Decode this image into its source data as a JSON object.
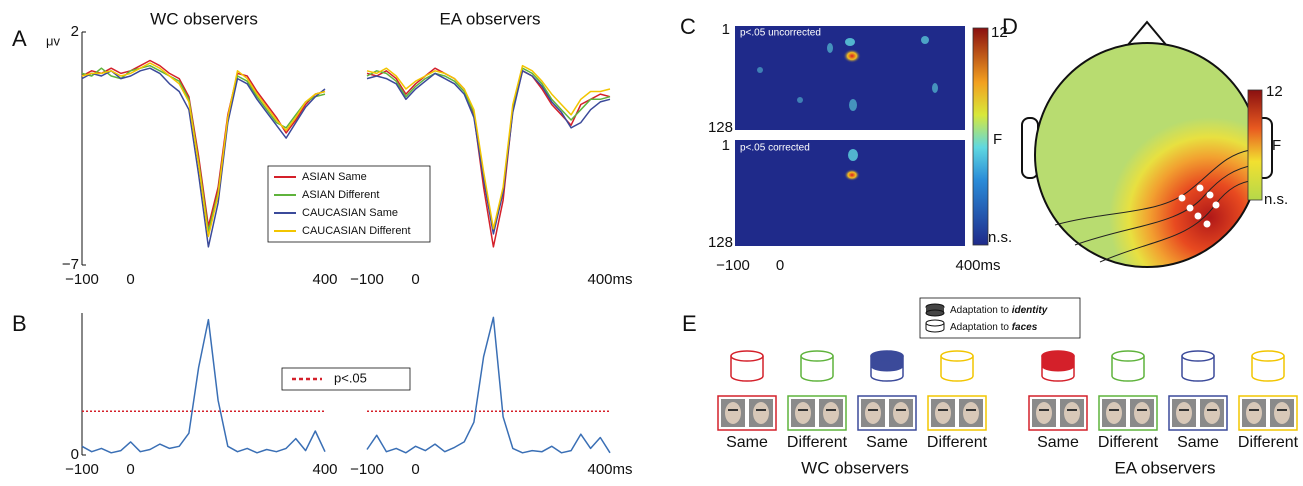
{
  "chart_data": [
    {
      "type": "line",
      "panel_label": "A",
      "title": "WC observers",
      "y_label": "μv",
      "x": [
        -100,
        -80,
        -60,
        -40,
        -20,
        0,
        20,
        40,
        60,
        80,
        100,
        120,
        140,
        160,
        180,
        200,
        220,
        240,
        260,
        280,
        300,
        320,
        340,
        360,
        380,
        400
      ],
      "series": [
        {
          "name": "ASIAN Same",
          "color": "#d4202a",
          "values": [
            0.3,
            0.5,
            0.4,
            0.6,
            0.4,
            0.5,
            0.7,
            0.9,
            0.7,
            0.4,
            0.2,
            -0.5,
            -2.8,
            -5.5,
            -4.0,
            -1.2,
            0.4,
            0.3,
            -0.3,
            -0.8,
            -1.3,
            -1.9,
            -1.4,
            -0.8,
            -0.4,
            -0.3
          ]
        },
        {
          "name": "ASIAN Different",
          "color": "#5fb33c",
          "values": [
            0.4,
            0.3,
            0.6,
            0.3,
            0.2,
            0.5,
            0.6,
            0.7,
            0.5,
            0.3,
            0.1,
            -0.6,
            -3.0,
            -5.7,
            -4.2,
            -1.4,
            0.3,
            0.1,
            -0.5,
            -1.0,
            -1.5,
            -1.7,
            -1.2,
            -0.7,
            -0.5,
            -0.4
          ]
        },
        {
          "name": "CAUCASIAN Same",
          "color": "#3b4a9a",
          "values": [
            0.2,
            0.4,
            0.3,
            0.5,
            0.2,
            0.3,
            0.5,
            0.6,
            0.4,
            0.0,
            -0.3,
            -1.0,
            -3.5,
            -6.3,
            -4.6,
            -1.5,
            0.2,
            0.0,
            -0.6,
            -1.1,
            -1.6,
            -2.1,
            -1.5,
            -0.9,
            -0.5,
            -0.2
          ]
        },
        {
          "name": "CAUCASIAN Different",
          "color": "#f2c500",
          "values": [
            0.3,
            0.4,
            0.4,
            0.5,
            0.3,
            0.4,
            0.6,
            0.8,
            0.6,
            0.3,
            0.0,
            -0.7,
            -3.1,
            -5.9,
            -4.3,
            -1.3,
            0.5,
            0.2,
            -0.4,
            -0.9,
            -1.4,
            -1.8,
            -1.3,
            -0.7,
            -0.4,
            -0.3
          ]
        }
      ],
      "xlim": [
        -100,
        400
      ],
      "ylim": [
        -7,
        2
      ],
      "xticks": [
        {
          "value": -100,
          "label": "−100"
        },
        0,
        400
      ],
      "yticks": [
        {
          "value": -7,
          "label": "−7"
        },
        2
      ],
      "legend": true
    },
    {
      "type": "line",
      "title": "EA observers",
      "x": [
        -100,
        -80,
        -60,
        -40,
        -20,
        0,
        20,
        40,
        60,
        80,
        100,
        120,
        140,
        160,
        180,
        200,
        220,
        240,
        260,
        280,
        300,
        320,
        340,
        360,
        380,
        400
      ],
      "series": [
        {
          "color": "#d4202a",
          "values": [
            0.4,
            0.3,
            0.5,
            0.2,
            -0.4,
            0.0,
            0.3,
            0.6,
            0.4,
            0.2,
            -0.2,
            -1.2,
            -4.0,
            -6.3,
            -4.5,
            -1.0,
            0.5,
            0.3,
            -0.2,
            -0.8,
            -1.2,
            -1.6,
            -0.8,
            -0.6,
            -0.4,
            -0.5
          ]
        },
        {
          "color": "#5fb33c",
          "values": [
            0.3,
            0.5,
            0.4,
            0.1,
            -0.5,
            -0.1,
            0.2,
            0.4,
            0.3,
            0.1,
            -0.3,
            -1.1,
            -3.6,
            -5.7,
            -4.1,
            -0.9,
            0.6,
            0.4,
            0.0,
            -0.6,
            -1.0,
            -1.4,
            -1.0,
            -0.6,
            -0.6,
            -0.5
          ]
        },
        {
          "color": "#3b4a9a",
          "values": [
            0.2,
            0.3,
            0.2,
            0.0,
            -0.6,
            -0.2,
            0.1,
            0.4,
            0.2,
            0.0,
            -0.4,
            -1.3,
            -3.7,
            -5.8,
            -4.2,
            -1.1,
            0.5,
            0.3,
            -0.1,
            -0.7,
            -1.1,
            -1.7,
            -1.5,
            -1.0,
            -0.7,
            -0.6
          ]
        },
        {
          "color": "#f2c500",
          "values": [
            0.5,
            0.4,
            0.6,
            0.3,
            -0.2,
            0.1,
            0.3,
            0.5,
            0.4,
            0.2,
            -0.2,
            -1.0,
            -3.4,
            -5.6,
            -4.0,
            -0.8,
            0.7,
            0.5,
            0.1,
            -0.4,
            -0.8,
            -1.2,
            -0.6,
            -0.3,
            -0.3,
            -0.2
          ]
        }
      ],
      "xlim": [
        -100,
        400
      ],
      "ylim": [
        -7,
        2
      ],
      "xticks": [
        {
          "value": -100,
          "label": "−100"
        },
        0,
        {
          "value": 400,
          "label": "400ms"
        }
      ]
    },
    {
      "type": "line",
      "panel_label": "B",
      "x": [
        -100,
        -80,
        -60,
        -40,
        -20,
        0,
        20,
        40,
        60,
        80,
        100,
        120,
        140,
        160,
        180,
        200,
        220,
        240,
        260,
        280,
        300,
        320,
        340,
        360,
        380,
        400
      ],
      "series": [
        {
          "color": "#3a6fb5",
          "values": [
            0.8,
            0.3,
            0.6,
            0.2,
            0.4,
            1.2,
            0.3,
            0.5,
            1.0,
            0.6,
            0.8,
            2.0,
            8.0,
            12.4,
            5.0,
            0.8,
            0.3,
            0.6,
            0.2,
            0.5,
            0.3,
            0.6,
            1.5,
            0.4,
            2.2,
            0.3
          ]
        }
      ],
      "threshold": {
        "value": 4,
        "label": "p<.05",
        "color": "#d4202a"
      },
      "xlim": [
        -100,
        400
      ],
      "ylim": [
        0,
        13
      ],
      "xticks": [
        {
          "value": -100,
          "label": "−100"
        },
        0,
        400
      ],
      "yticks": [
        0
      ]
    },
    {
      "type": "line",
      "x": [
        -100,
        -80,
        -60,
        -40,
        -20,
        0,
        20,
        40,
        60,
        80,
        100,
        120,
        140,
        160,
        180,
        200,
        220,
        240,
        260,
        280,
        300,
        320,
        340,
        360,
        380,
        400
      ],
      "series": [
        {
          "color": "#3a6fb5",
          "values": [
            0.5,
            1.8,
            0.3,
            0.6,
            0.2,
            0.8,
            0.4,
            1.0,
            0.3,
            0.7,
            1.2,
            3.0,
            9.0,
            12.6,
            3.5,
            0.6,
            0.2,
            0.4,
            0.3,
            0.8,
            0.2,
            0.4,
            1.9,
            0.6,
            1.6,
            0.2
          ]
        }
      ],
      "threshold": {
        "value": 4,
        "color": "#d4202a"
      },
      "xlim": [
        -100,
        400
      ],
      "ylim": [
        0,
        13
      ],
      "xticks": [
        {
          "value": -100,
          "label": "−100"
        },
        0,
        {
          "value": 400,
          "label": "400ms"
        }
      ]
    }
  ],
  "panel_c": {
    "panel_label": "C",
    "top_label": "p<.05 uncorrected",
    "bottom_label": "p<.05 corrected",
    "row_first": "1",
    "row_last": "128",
    "x_first": "−100",
    "x_zero": "0",
    "x_last": "400ms",
    "colorbar_top": "12",
    "colorbar_mid": "F",
    "colorbar_bottom": "n.s."
  },
  "panel_d": {
    "panel_label": "D",
    "colorbar_top": "12",
    "colorbar_mid": "F",
    "colorbar_bottom": "n.s."
  },
  "panel_e": {
    "panel_label": "E",
    "legend_identity_prefix": "Adaptation to",
    "legend_identity_emph": "identity",
    "legend_faces_prefix": "Adaptation to",
    "legend_faces_emph": "faces",
    "groups": [
      {
        "name": "WC observers",
        "conditions": [
          "Same",
          "Different",
          "Same",
          "Different"
        ]
      },
      {
        "name": "EA observers",
        "conditions": [
          "Same",
          "Different",
          "Same",
          "Different"
        ]
      }
    ]
  }
}
